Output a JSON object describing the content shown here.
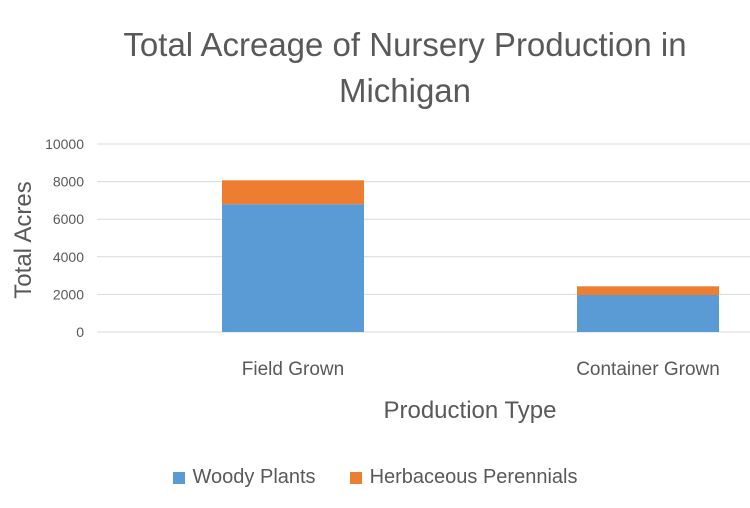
{
  "chart_data": {
    "type": "bar",
    "stacked": true,
    "title": "Total Acreage of Nursery Production in Michigan",
    "xlabel": "Production Type",
    "ylabel": "Total Acres",
    "categories": [
      "Field Grown",
      "Container Grown"
    ],
    "series": [
      {
        "name": "Woody Plants",
        "values": [
          6800,
          1970
        ],
        "color": "#5B9BD5"
      },
      {
        "name": "Herbaceous Perennials",
        "values": [
          1270,
          460
        ],
        "color": "#ED7D31"
      }
    ],
    "ylim": [
      0,
      10000
    ],
    "yticks": [
      "0",
      "2000",
      "4000",
      "6000",
      "8000",
      "10000"
    ],
    "grid": true,
    "legend": "bottom"
  }
}
